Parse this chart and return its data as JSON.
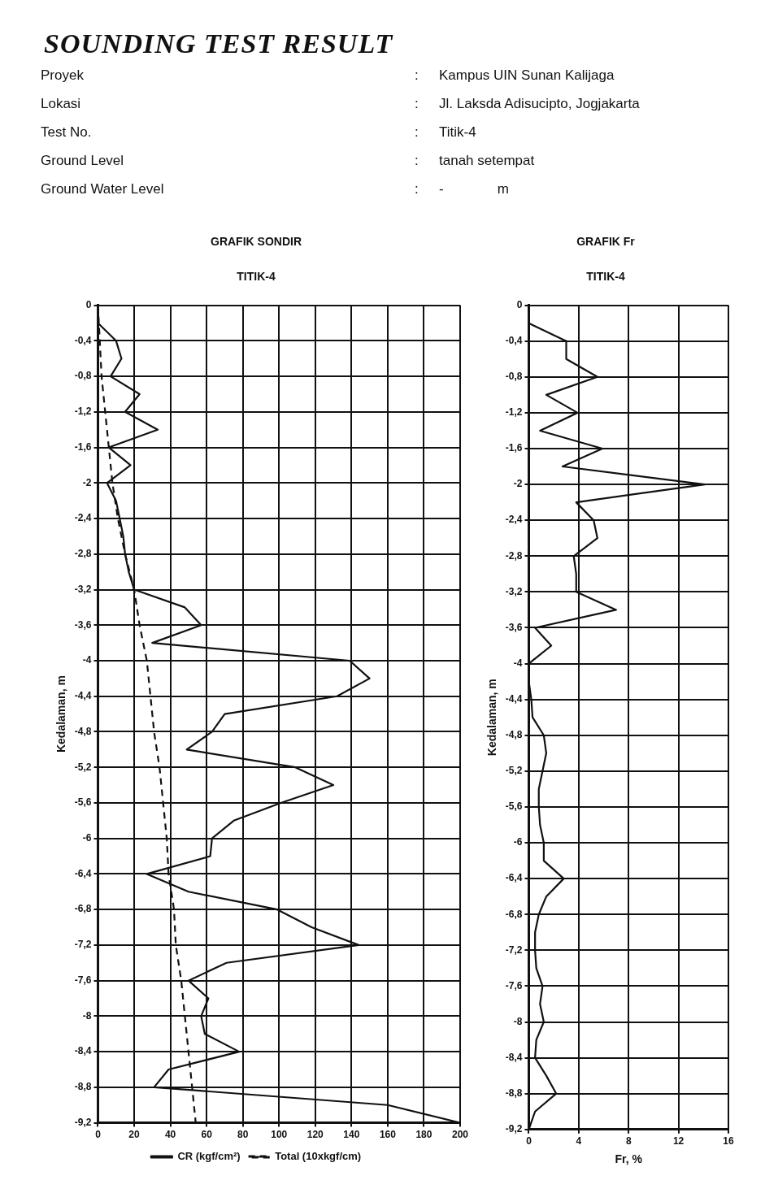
{
  "chart_data": [
    {
      "type": "other",
      "title": "SOUNDING TEST RESULT",
      "annotations": [
        "Proyek",
        ":",
        "Kampus UIN Sunan Kalijaga",
        "Lokasi",
        ":",
        "Jl. Laksda Adisucipto, Jogjakarta",
        "Test No.",
        ":",
        "Titik-4",
        "Ground Level",
        ":",
        "tanah setempat",
        "Ground Water Level",
        ":",
        "-              m"
      ]
    },
    {
      "type": "line",
      "title": "GRAFIK SONDIR",
      "subtitle": "TITIK-4",
      "ylabel": "Kedalaman, m",
      "marker": "none",
      "grid": true,
      "legend": "bottom",
      "xlim": [
        0,
        200
      ],
      "xticks": [
        0,
        20,
        40,
        60,
        80,
        100,
        120,
        140,
        160,
        180,
        200
      ],
      "ylim": [
        -9.2,
        0
      ],
      "yticks": [
        0,
        {
          "value": -0.4,
          "label": "-0,4"
        },
        {
          "value": -0.8,
          "label": "-0,8"
        },
        {
          "value": -1.2,
          "label": "-1,2"
        },
        {
          "value": -1.6,
          "label": "-1,6"
        },
        -2,
        {
          "value": -2.4,
          "label": "-2,4"
        },
        {
          "value": -2.8,
          "label": "-2,8"
        },
        {
          "value": -3.2,
          "label": "-3,2"
        },
        {
          "value": -3.6,
          "label": "-3,6"
        },
        -4,
        {
          "value": -4.4,
          "label": "-4,4"
        },
        {
          "value": -4.8,
          "label": "-4,8"
        },
        {
          "value": -5.2,
          "label": "-5,2"
        },
        {
          "value": -5.6,
          "label": "-5,6"
        },
        -6,
        {
          "value": -6.4,
          "label": "-6,4"
        },
        {
          "value": -6.8,
          "label": "-6,8"
        },
        {
          "value": -7.2,
          "label": "-7,2"
        },
        {
          "value": -7.6,
          "label": "-7,6"
        },
        -8,
        {
          "value": -8.4,
          "label": "-8,4"
        },
        {
          "value": -8.8,
          "label": "-8,8"
        },
        {
          "value": -9.2,
          "label": "-9,2"
        }
      ],
      "series": [
        {
          "name": "CR (kgf/cm²)",
          "color": "#111111",
          "line_style": "solid",
          "x": [
            0,
            10,
            13,
            7,
            23,
            15,
            33,
            6,
            18,
            5,
            10,
            12,
            14,
            15,
            17,
            20,
            48,
            57,
            30,
            139,
            150,
            132,
            70,
            63,
            49,
            109,
            130,
            101,
            75,
            63,
            62,
            27,
            50,
            99,
            118,
            144,
            71,
            50,
            61,
            57,
            59,
            78,
            39,
            31,
            160,
            200
          ],
          "values": [
            -0.2,
            -0.4,
            -0.6,
            -0.8,
            -1.0,
            -1.2,
            -1.4,
            -1.6,
            -1.8,
            -2.0,
            -2.2,
            -2.4,
            -2.6,
            -2.8,
            -3.0,
            -3.2,
            -3.4,
            -3.6,
            -3.8,
            -4.0,
            -4.2,
            -4.4,
            -4.6,
            -4.8,
            -5.0,
            -5.2,
            -5.4,
            -5.6,
            -5.8,
            -6.0,
            -6.2,
            -6.4,
            -6.6,
            -6.8,
            -7.0,
            -7.2,
            -7.4,
            -7.6,
            -7.8,
            -8.0,
            -8.2,
            -8.4,
            -8.6,
            -8.8,
            -9.0,
            -9.2
          ]
        },
        {
          "name": "Total (10xkgf/cm)",
          "color": "#111111",
          "line_style": "dashed",
          "x": [
            0,
            2,
            4,
            6,
            8,
            11,
            15,
            20,
            23,
            27,
            29,
            31,
            34,
            36,
            38,
            39,
            42,
            43,
            46,
            48,
            50,
            52,
            54
          ],
          "values": [
            0,
            -0.8,
            -1.2,
            -1.6,
            -2.0,
            -2.4,
            -2.8,
            -3.2,
            -3.6,
            -4.0,
            -4.4,
            -4.8,
            -5.2,
            -5.6,
            -6.0,
            -6.4,
            -6.8,
            -7.2,
            -7.6,
            -8.0,
            -8.4,
            -8.8,
            -9.2
          ]
        }
      ]
    },
    {
      "type": "line",
      "title": "GRAFIK Fr",
      "subtitle": "TITIK-4",
      "xlabel": "Fr, %",
      "ylabel": "Kedalaman, m",
      "marker": "none",
      "grid": true,
      "xlim": [
        0,
        16
      ],
      "xticks": [
        0,
        4,
        8,
        12,
        16
      ],
      "ylim": [
        -9.2,
        0
      ],
      "yticks": [
        0,
        {
          "value": -0.4,
          "label": "-0,4"
        },
        {
          "value": -0.8,
          "label": "-0,8"
        },
        {
          "value": -1.2,
          "label": "-1,2"
        },
        {
          "value": -1.6,
          "label": "-1,6"
        },
        -2,
        {
          "value": -2.4,
          "label": "-2,4"
        },
        {
          "value": -2.8,
          "label": "-2,8"
        },
        {
          "value": -3.2,
          "label": "-3,2"
        },
        {
          "value": -3.6,
          "label": "-3,6"
        },
        -4,
        {
          "value": -4.4,
          "label": "-4,4"
        },
        {
          "value": -4.8,
          "label": "-4,8"
        },
        {
          "value": -5.2,
          "label": "-5,2"
        },
        {
          "value": -5.6,
          "label": "-5,6"
        },
        -6,
        {
          "value": -6.4,
          "label": "-6,4"
        },
        {
          "value": -6.8,
          "label": "-6,8"
        },
        {
          "value": -7.2,
          "label": "-7,2"
        },
        {
          "value": -7.6,
          "label": "-7,6"
        },
        -8,
        {
          "value": -8.4,
          "label": "-8,4"
        },
        {
          "value": -8.8,
          "label": "-8,8"
        },
        {
          "value": -9.2,
          "label": "-9,2"
        }
      ],
      "series": [
        {
          "color": "#111111",
          "x": [
            0,
            3.0,
            3.0,
            5.5,
            1.4,
            3.9,
            0.9,
            5.9,
            2.7,
            14.1,
            3.8,
            5.2,
            5.5,
            3.6,
            3.8,
            3.8,
            7.0,
            0.5,
            1.8,
            0,
            0,
            0.2,
            0.3,
            1.2,
            1.4,
            1.1,
            0.8,
            0.8,
            0.9,
            1.2,
            1.2,
            2.8,
            1.4,
            0.8,
            0.5,
            0.5,
            0.6,
            1.1,
            0.9,
            1.2,
            0.6,
            0.5,
            1.4,
            2.2,
            0.5,
            0
          ],
          "values": [
            -0.2,
            -0.4,
            -0.6,
            -0.8,
            -1.0,
            -1.2,
            -1.4,
            -1.6,
            -1.8,
            -2.0,
            -2.2,
            -2.4,
            -2.6,
            -2.8,
            -3.0,
            -3.2,
            -3.4,
            -3.6,
            -3.8,
            -4.0,
            -4.2,
            -4.4,
            -4.6,
            -4.8,
            -5.0,
            -5.2,
            -5.4,
            -5.6,
            -5.8,
            -6.0,
            -6.2,
            -6.4,
            -6.6,
            -6.8,
            -7.0,
            -7.2,
            -7.4,
            -7.6,
            -7.8,
            -8.0,
            -8.2,
            -8.4,
            -8.6,
            -8.8,
            -9.0,
            -9.2
          ]
        }
      ]
    }
  ]
}
